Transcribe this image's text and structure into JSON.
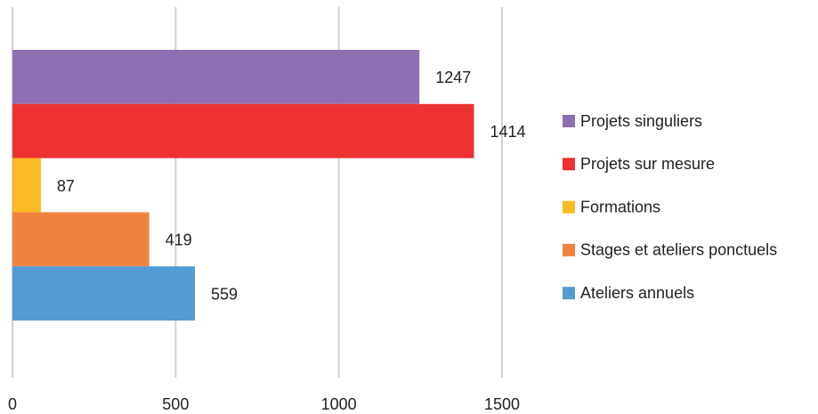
{
  "chart_data": {
    "type": "bar",
    "orientation": "horizontal",
    "categories": [
      null
    ],
    "series": [
      {
        "name": "Projets singuliers",
        "color": "#8e6fb3",
        "values": [
          1247
        ]
      },
      {
        "name": "Projets sur mesure",
        "color": "#ee3231",
        "values": [
          1414
        ]
      },
      {
        "name": "Formations",
        "color": "#fbba25",
        "values": [
          87
        ]
      },
      {
        "name": "Stages et ateliers ponctuels",
        "color": "#f0843f",
        "values": [
          419
        ]
      },
      {
        "name": "Ateliers annuels",
        "color": "#539bd4",
        "values": [
          559
        ]
      }
    ],
    "xlim": [
      0,
      1500
    ],
    "xticks": [
      0,
      500,
      1000,
      1500
    ],
    "grid": true,
    "legend": "right"
  }
}
